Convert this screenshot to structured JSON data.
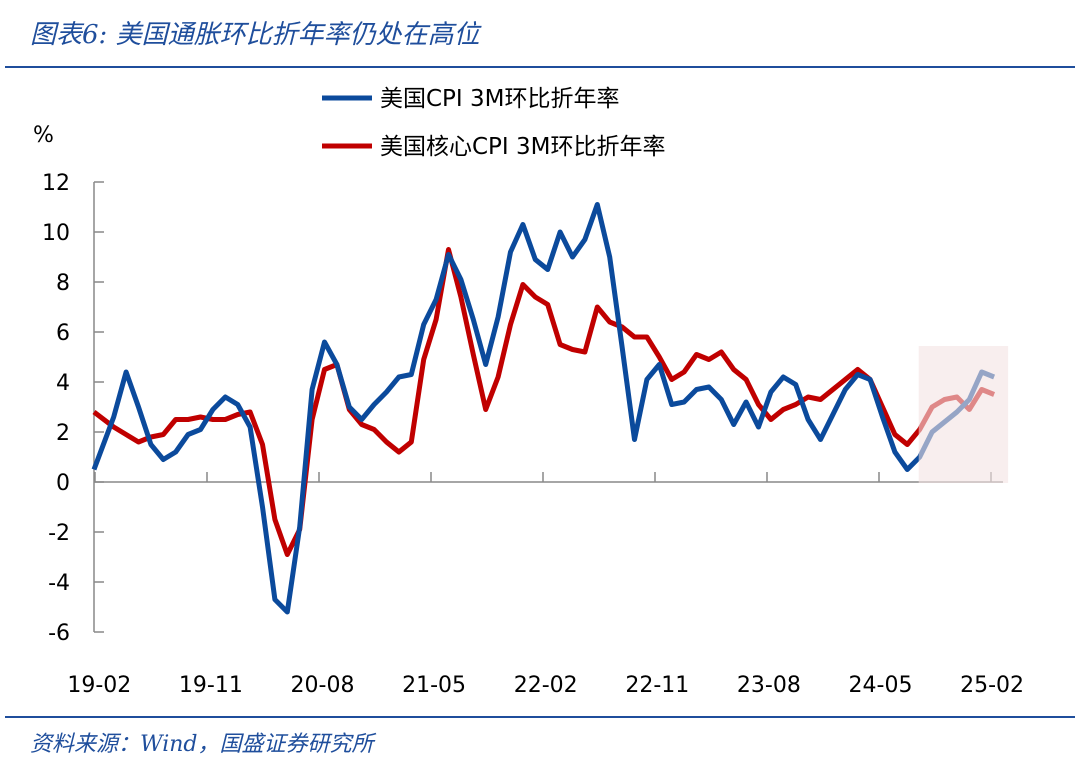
{
  "header": {
    "title": "图表6:  美国通胀环比折年率仍处在高位"
  },
  "footer": {
    "source": "资料来源：Wind，国盛证券研究所"
  },
  "colors": {
    "cpi": "#0b4a9c",
    "core": "#c00000",
    "highlight": "#f3e3e3",
    "brand": "#1f4e9c"
  },
  "chart_data": {
    "type": "line",
    "title": "",
    "ylabel": "%",
    "ylim": [
      -6,
      12
    ],
    "yticks": [
      "12",
      "10",
      "8",
      "6",
      "4",
      "2",
      "0",
      "-2",
      "-4",
      "-6"
    ],
    "xticks": [
      "19-02",
      "19-11",
      "20-08",
      "21-05",
      "22-02",
      "22-11",
      "23-08",
      "24-05",
      "25-02"
    ],
    "legend_position": "top-center",
    "grid": false,
    "highlight_range": [
      "24-08",
      "25-02"
    ],
    "categories": [
      "19-02",
      "19-03",
      "19-04",
      "19-05",
      "19-06",
      "19-07",
      "19-08",
      "19-09",
      "19-10",
      "19-11",
      "19-12",
      "20-01",
      "20-02",
      "20-03",
      "20-04",
      "20-05",
      "20-06",
      "20-07",
      "20-08",
      "20-09",
      "20-10",
      "20-11",
      "20-12",
      "21-01",
      "21-02",
      "21-03",
      "21-04",
      "21-05",
      "21-06",
      "21-07",
      "21-08",
      "21-09",
      "21-10",
      "21-11",
      "21-12",
      "22-01",
      "22-02",
      "22-03",
      "22-04",
      "22-05",
      "22-06",
      "22-07",
      "22-08",
      "22-09",
      "22-10",
      "22-11",
      "22-12",
      "23-01",
      "23-02",
      "23-03",
      "23-04",
      "23-05",
      "23-06",
      "23-07",
      "23-08",
      "23-09",
      "23-10",
      "23-11",
      "23-12",
      "24-01",
      "24-02",
      "24-03",
      "24-04",
      "24-05",
      "24-06",
      "24-07",
      "24-08",
      "24-09",
      "24-10",
      "24-11",
      "24-12",
      "25-01",
      "25-02"
    ],
    "series": [
      {
        "name": "美国CPI 3M环比折年率",
        "values": [
          0.5,
          2.6,
          4.4,
          3.0,
          1.5,
          0.9,
          1.2,
          1.9,
          2.1,
          2.9,
          3.4,
          3.1,
          2.2,
          -1.0,
          -4.7,
          -5.2,
          -1.8,
          3.7,
          5.6,
          4.7,
          3.0,
          2.5,
          3.1,
          3.6,
          4.2,
          4.3,
          6.3,
          7.3,
          9.1,
          8.1,
          6.5,
          4.7,
          6.6,
          9.2,
          10.3,
          8.9,
          8.5,
          10.0,
          9.0,
          9.7,
          11.1,
          9.0,
          5.4,
          1.7,
          4.1,
          4.7,
          3.1,
          3.2,
          3.7,
          3.8,
          3.3,
          2.3,
          3.2,
          2.2,
          3.6,
          4.2,
          3.9,
          2.5,
          1.7,
          2.7,
          3.7,
          4.3,
          4.1,
          2.6,
          1.2,
          0.5,
          1.0,
          2.0,
          2.4,
          2.8,
          3.3,
          4.4,
          4.2
        ]
      },
      {
        "name": "美国核心CPI 3M环比折年率",
        "values": [
          2.8,
          2.2,
          1.9,
          1.6,
          1.8,
          1.9,
          2.5,
          2.5,
          2.6,
          2.5,
          2.5,
          2.7,
          2.8,
          1.5,
          -1.5,
          -2.9,
          -1.9,
          2.5,
          4.5,
          4.7,
          2.9,
          2.3,
          2.1,
          1.6,
          1.2,
          1.6,
          4.9,
          6.5,
          9.3,
          7.4,
          5.1,
          2.9,
          4.2,
          6.3,
          7.9,
          7.4,
          7.1,
          5.5,
          5.3,
          5.2,
          7.0,
          6.4,
          6.2,
          5.8,
          5.8,
          5.0,
          4.1,
          4.4,
          5.1,
          4.9,
          5.2,
          4.5,
          4.1,
          3.1,
          2.5,
          2.9,
          3.1,
          3.4,
          3.3,
          3.7,
          4.1,
          4.5,
          4.1,
          3.0,
          1.9,
          1.5,
          2.1,
          3.0,
          3.3,
          3.4,
          2.9,
          3.7,
          3.5
        ]
      }
    ]
  }
}
